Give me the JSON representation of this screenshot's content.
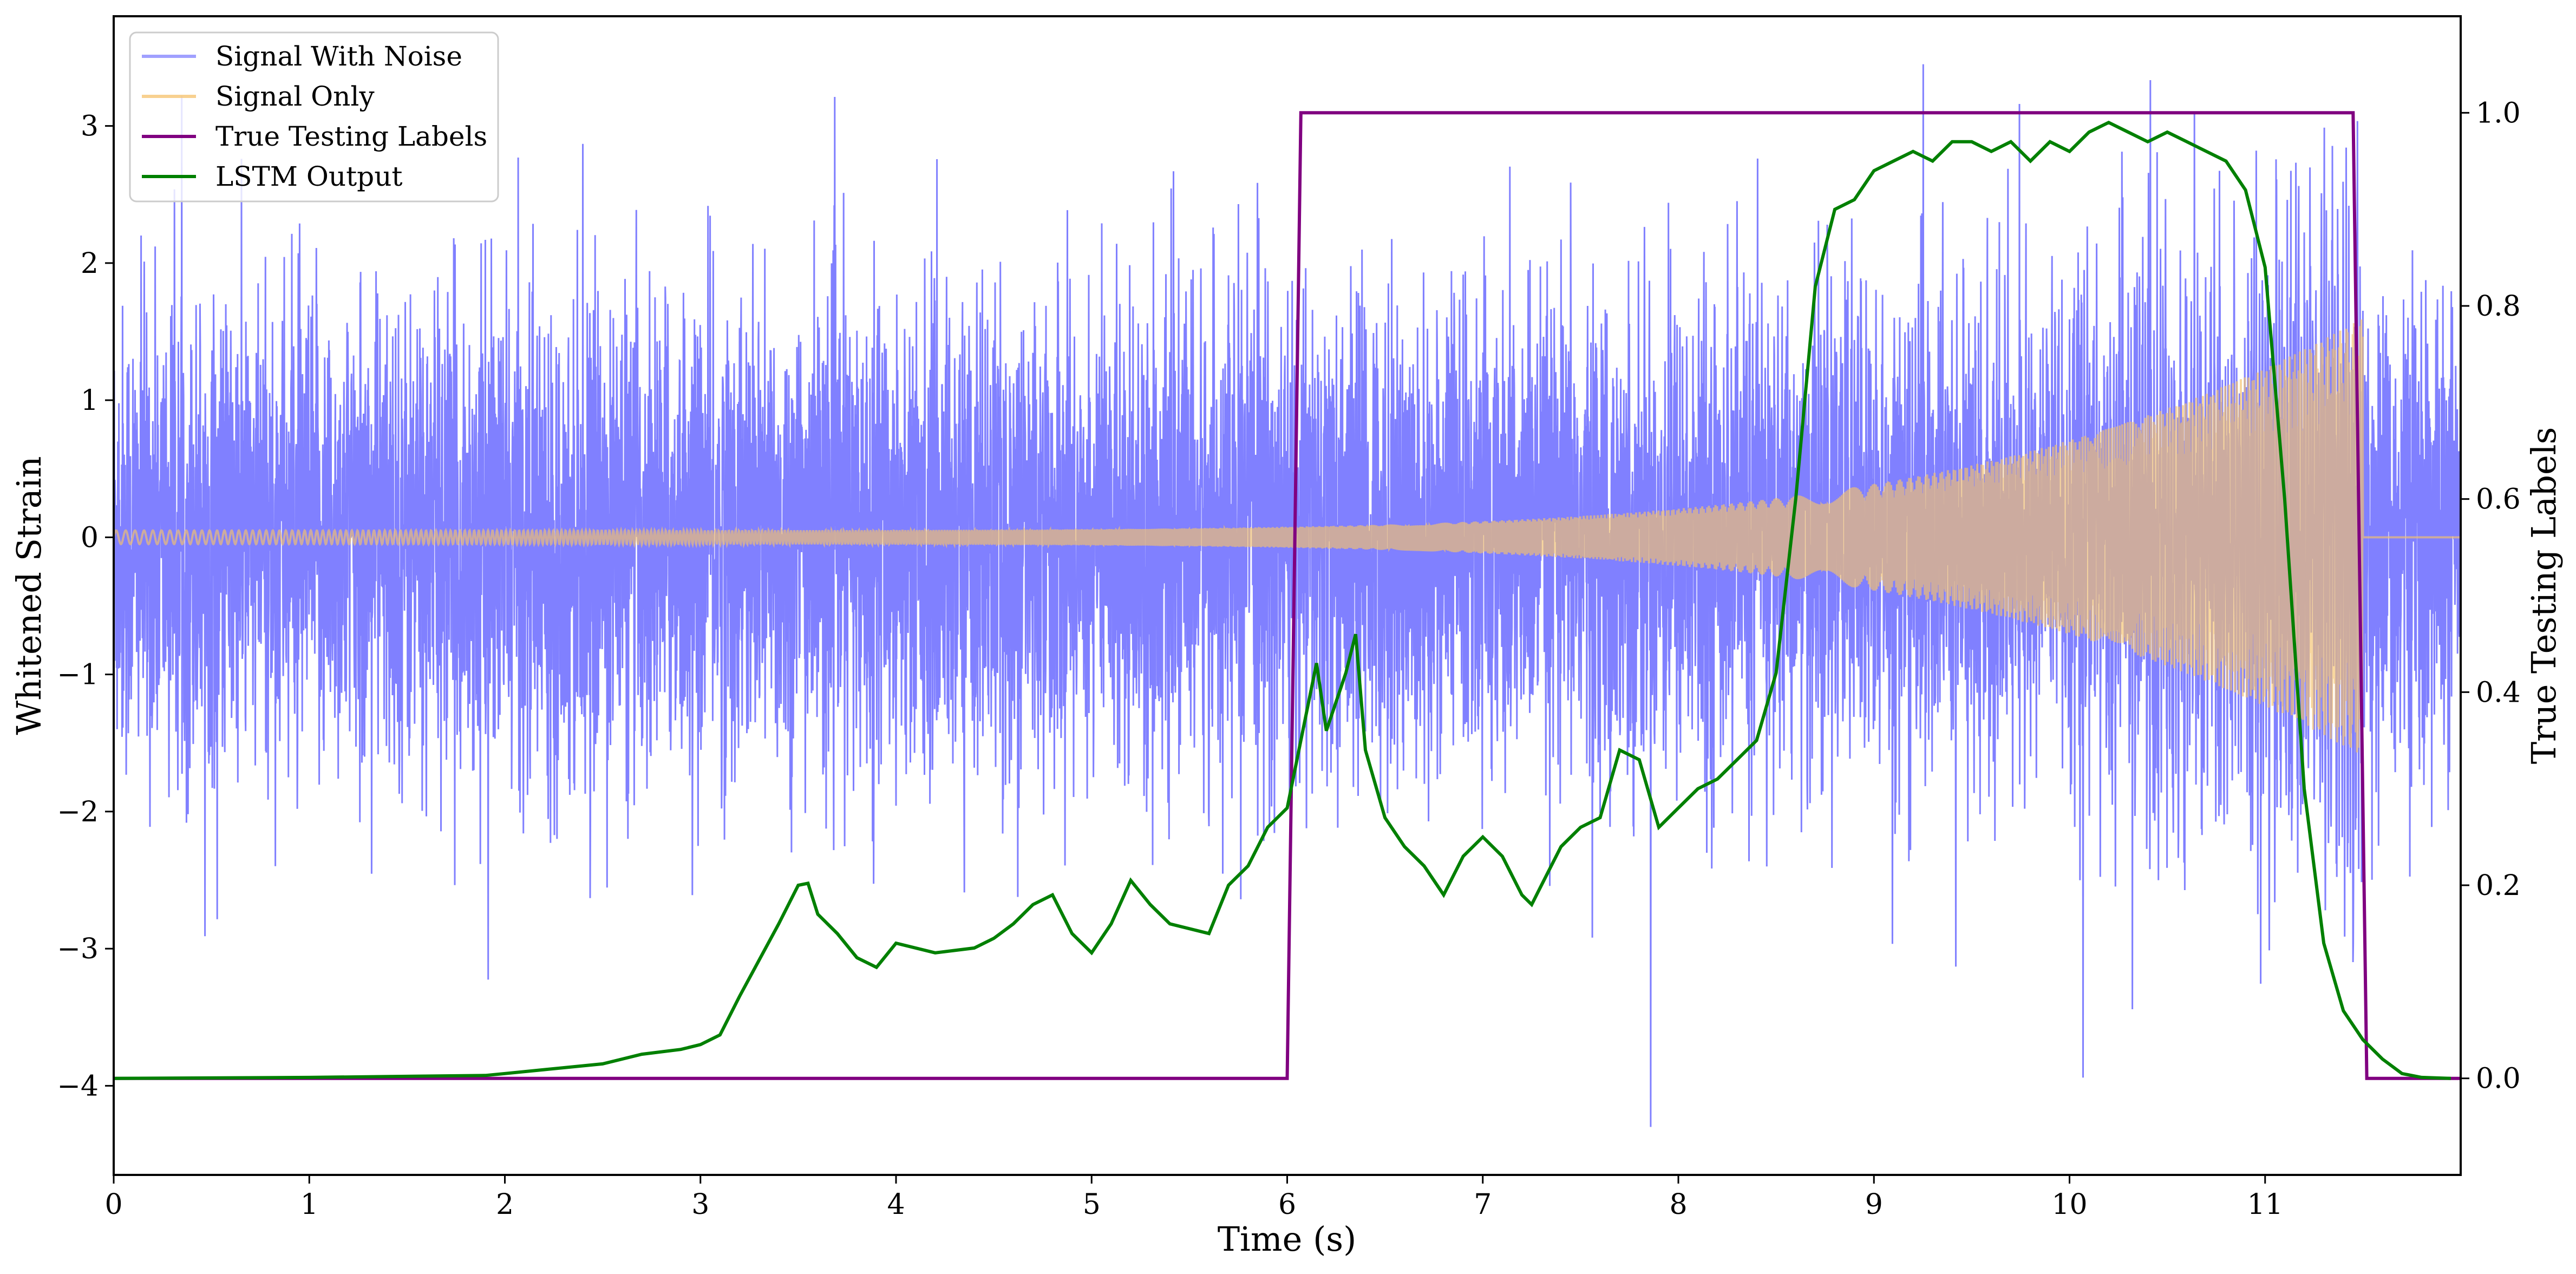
{
  "chart_data": {
    "type": "line",
    "title": "",
    "xlabel": "Time (s)",
    "ylabel": "Whitened Strain",
    "ylabel_right": "True Testing Labels",
    "xlim": [
      0,
      12
    ],
    "ylim": [
      -4.65,
      3.8
    ],
    "ylim_right": [
      -0.1,
      1.1
    ],
    "xticks": [
      0,
      1,
      2,
      3,
      4,
      5,
      6,
      7,
      8,
      9,
      10,
      11
    ],
    "yticks": [
      -4,
      -3,
      -2,
      -1,
      0,
      1,
      2,
      3
    ],
    "yticks_right": [
      0.0,
      0.2,
      0.4,
      0.6,
      0.8,
      1.0
    ],
    "grid": false,
    "legend_position": "top-left",
    "colors": {
      "noise": "#8080ff",
      "signal": "#f5c26b",
      "labels": "#800080",
      "lstm": "#008000"
    },
    "series": [
      {
        "name": "Signal With Noise",
        "axis": "left",
        "description_points": [],
        "approx_std": 0.85,
        "x_range": [
          0,
          12
        ]
      },
      {
        "name": "Signal Only",
        "axis": "left",
        "amplitude_start": 0.05,
        "amplitude_end": 1.35,
        "chirp_end": 11.5
      },
      {
        "name": "True Testing Labels",
        "axis": "right",
        "x": [
          0,
          6.0,
          6.07,
          11.45,
          11.52,
          12.0
        ],
        "y": [
          0,
          0,
          1,
          1,
          0,
          0
        ]
      },
      {
        "name": "LSTM Output",
        "axis": "right",
        "x": [
          0,
          1.0,
          1.9,
          2.0,
          2.2,
          2.5,
          2.7,
          2.9,
          3.0,
          3.1,
          3.2,
          3.4,
          3.5,
          3.55,
          3.6,
          3.7,
          3.8,
          3.9,
          4.0,
          4.2,
          4.4,
          4.5,
          4.6,
          4.7,
          4.8,
          4.9,
          5.0,
          5.1,
          5.2,
          5.3,
          5.4,
          5.6,
          5.7,
          5.8,
          5.9,
          6.0,
          6.1,
          6.15,
          6.2,
          6.3,
          6.35,
          6.4,
          6.5,
          6.6,
          6.7,
          6.8,
          6.9,
          7.0,
          7.1,
          7.2,
          7.25,
          7.3,
          7.4,
          7.5,
          7.6,
          7.7,
          7.8,
          7.9,
          8.0,
          8.1,
          8.2,
          8.3,
          8.4,
          8.5,
          8.6,
          8.7,
          8.8,
          8.9,
          9.0,
          9.1,
          9.2,
          9.3,
          9.4,
          9.5,
          9.6,
          9.7,
          9.8,
          9.9,
          10.0,
          10.1,
          10.2,
          10.3,
          10.4,
          10.5,
          10.6,
          10.7,
          10.8,
          10.9,
          11.0,
          11.1,
          11.2,
          11.3,
          11.4,
          11.5,
          11.6,
          11.7,
          11.8,
          11.95
        ],
        "y": [
          0,
          0.001,
          0.003,
          0.005,
          0.009,
          0.015,
          0.025,
          0.03,
          0.035,
          0.045,
          0.085,
          0.16,
          0.2,
          0.202,
          0.17,
          0.15,
          0.125,
          0.115,
          0.14,
          0.13,
          0.135,
          0.145,
          0.16,
          0.18,
          0.19,
          0.15,
          0.13,
          0.16,
          0.205,
          0.18,
          0.16,
          0.15,
          0.2,
          0.22,
          0.26,
          0.28,
          0.38,
          0.43,
          0.36,
          0.42,
          0.46,
          0.34,
          0.27,
          0.24,
          0.22,
          0.19,
          0.23,
          0.25,
          0.23,
          0.19,
          0.18,
          0.2,
          0.24,
          0.26,
          0.27,
          0.34,
          0.33,
          0.26,
          0.28,
          0.3,
          0.31,
          0.33,
          0.35,
          0.42,
          0.6,
          0.82,
          0.9,
          0.91,
          0.94,
          0.95,
          0.96,
          0.95,
          0.97,
          0.97,
          0.96,
          0.97,
          0.95,
          0.97,
          0.96,
          0.98,
          0.99,
          0.98,
          0.97,
          0.98,
          0.97,
          0.96,
          0.95,
          0.92,
          0.84,
          0.6,
          0.3,
          0.14,
          0.07,
          0.04,
          0.02,
          0.005,
          0.001,
          0
        ]
      }
    ]
  },
  "legend": {
    "items": [
      {
        "label": "Signal With Noise",
        "color": "#8080ff"
      },
      {
        "label": "Signal Only",
        "color": "#f5c26b"
      },
      {
        "label": "True Testing Labels",
        "color": "#800080"
      },
      {
        "label": "LSTM Output",
        "color": "#008000"
      }
    ]
  }
}
